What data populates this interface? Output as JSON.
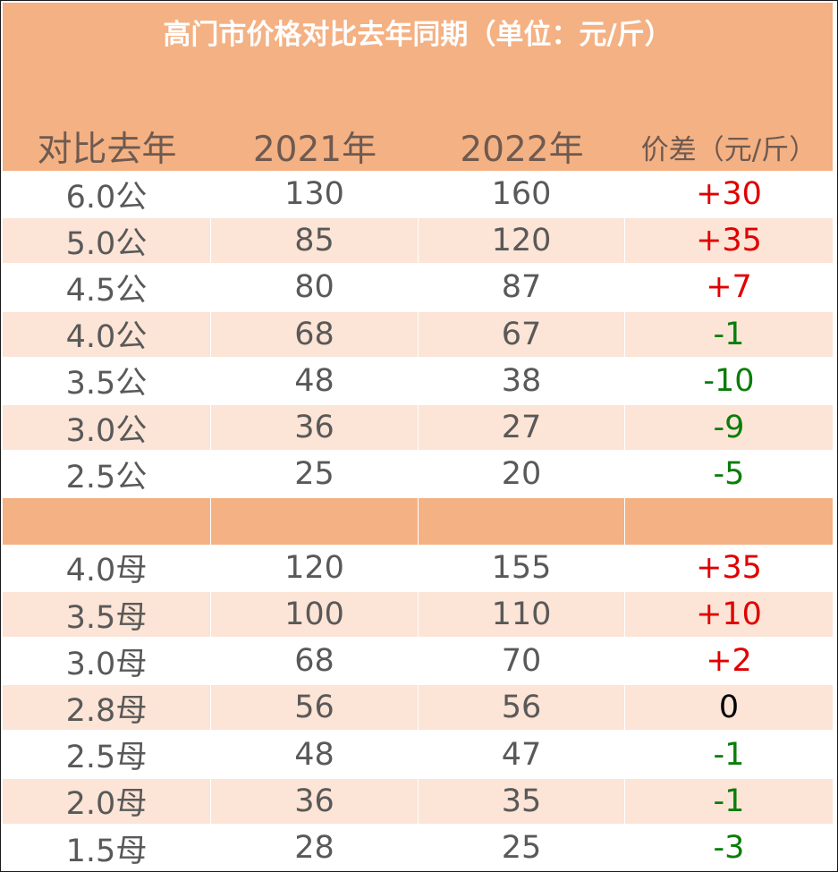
{
  "title": "高门市价格对比去年同期（单位：元/斤）",
  "headers": {
    "col1": "对比去年",
    "col2": "2021年",
    "col3": "2022年",
    "col4": "价差（元/斤）"
  },
  "male_rows": [
    {
      "spec": "6.0公",
      "y2021": "130",
      "y2022": "160",
      "diff": "+30",
      "trend": "up"
    },
    {
      "spec": "5.0公",
      "y2021": "85",
      "y2022": "120",
      "diff": "+35",
      "trend": "up"
    },
    {
      "spec": "4.5公",
      "y2021": "80",
      "y2022": "87",
      "diff": "+7",
      "trend": "up"
    },
    {
      "spec": "4.0公",
      "y2021": "68",
      "y2022": "67",
      "diff": "-1",
      "trend": "down"
    },
    {
      "spec": "3.5公",
      "y2021": "48",
      "y2022": "38",
      "diff": "-10",
      "trend": "down"
    },
    {
      "spec": "3.0公",
      "y2021": "36",
      "y2022": "27",
      "diff": "-9",
      "trend": "down"
    },
    {
      "spec": "2.5公",
      "y2021": "25",
      "y2022": "20",
      "diff": "-5",
      "trend": "down"
    }
  ],
  "female_rows": [
    {
      "spec": "4.0母",
      "y2021": "120",
      "y2022": "155",
      "diff": "+35",
      "trend": "up"
    },
    {
      "spec": "3.5母",
      "y2021": "100",
      "y2022": "110",
      "diff": "+10",
      "trend": "up"
    },
    {
      "spec": "3.0母",
      "y2021": "68",
      "y2022": "70",
      "diff": "+2",
      "trend": "up"
    },
    {
      "spec": "2.8母",
      "y2021": "56",
      "y2022": "56",
      "diff": "0",
      "trend": "zero"
    },
    {
      "spec": "2.5母",
      "y2021": "48",
      "y2022": "47",
      "diff": "-1",
      "trend": "down"
    },
    {
      "spec": "2.0母",
      "y2021": "36",
      "y2022": "35",
      "diff": "-1",
      "trend": "down"
    },
    {
      "spec": "1.5母",
      "y2021": "28",
      "y2022": "25",
      "diff": "-3",
      "trend": "down"
    }
  ],
  "colors": {
    "header_band": "#f4b183",
    "alt_row": "#fce4d6",
    "increase": "#e00000",
    "decrease": "#0a7d0a",
    "no_change": "#000000"
  }
}
